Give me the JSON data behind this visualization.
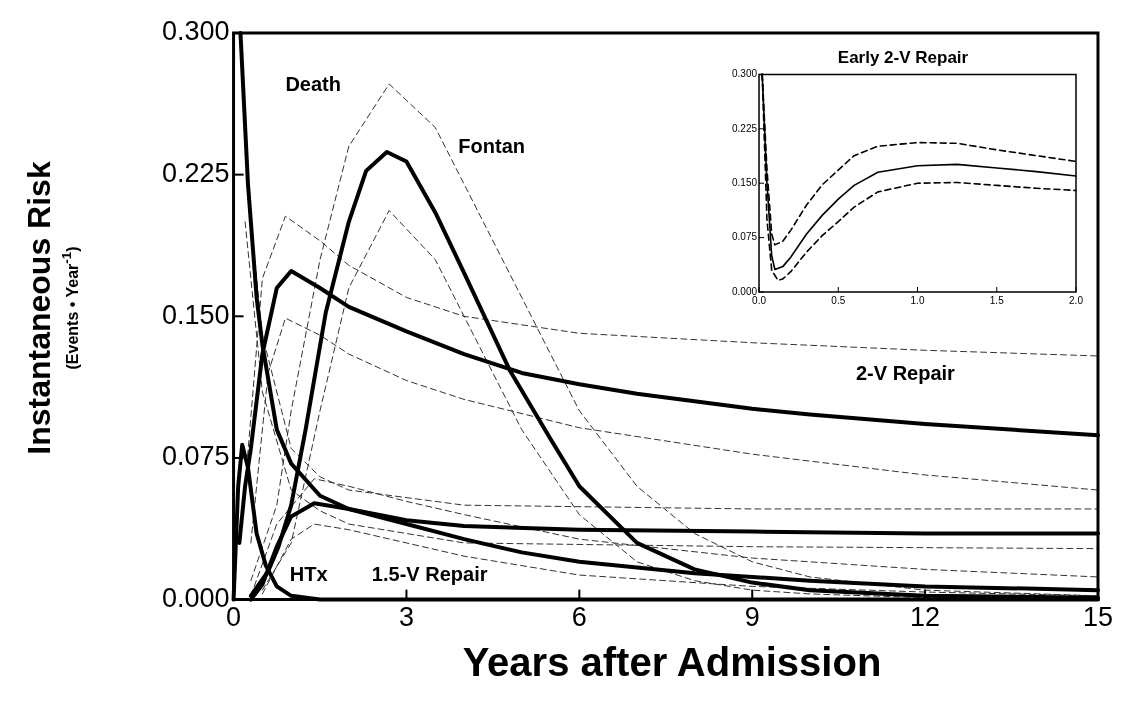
{
  "chart_data": [
    {
      "type": "line",
      "xlabel": "Years after Admission",
      "ylabel": "Instantaneous Risk\n(Events • Year$^{-1}$)",
      "xlim": [
        0,
        15
      ],
      "xticks": [
        0,
        3,
        6,
        9,
        12,
        15
      ],
      "ylim": [
        0,
        0.3
      ],
      "yticks": [
        {
          "value": 0,
          "label": "0.000"
        },
        {
          "value": 0.075,
          "label": "0.075"
        },
        {
          "value": 0.15,
          "label": "0.150"
        },
        {
          "value": 0.225,
          "label": "0.225"
        },
        {
          "value": 0.3,
          "label": "0.300"
        }
      ],
      "grid": false,
      "legend": false,
      "marker": "none",
      "series": [
        {
          "name": "Death",
          "type": "line",
          "color": "#000000",
          "line_style": "solid",
          "x": [
            0.12,
            0.25,
            0.4,
            0.5,
            0.75,
            1,
            1.5,
            2,
            3,
            4,
            6,
            9,
            12,
            15
          ],
          "values": [
            0.3,
            0.22,
            0.16,
            0.135,
            0.09,
            0.072,
            0.055,
            0.048,
            0.042,
            0.039,
            0.037,
            0.036,
            0.035,
            0.035
          ]
        },
        {
          "name": "Fontan",
          "type": "line",
          "color": "#000000",
          "line_style": "solid",
          "x": [
            0.3,
            0.6,
            0.78,
            1,
            1.25,
            1.6,
            2,
            2.3,
            2.66,
            3,
            3.5,
            4,
            4.8,
            5.5,
            6,
            7,
            8,
            9,
            10,
            12,
            15
          ],
          "values": [
            0.002,
            0.015,
            0.028,
            0.05,
            0.09,
            0.152,
            0.2,
            0.227,
            0.237,
            0.232,
            0.205,
            0.173,
            0.121,
            0.085,
            0.06,
            0.03,
            0.016,
            0.009,
            0.005,
            0.002,
            0.001
          ]
        },
        {
          "name": "2-V Repair",
          "type": "line",
          "color": "#000000",
          "line_style": "solid",
          "x": [
            0.1,
            0.2,
            0.3,
            0.5,
            0.75,
            1,
            1.5,
            2,
            3,
            4,
            5,
            6,
            7,
            8,
            9,
            10,
            12,
            15
          ],
          "values": [
            0.03,
            0.06,
            0.08,
            0.13,
            0.165,
            0.174,
            0.165,
            0.155,
            0.142,
            0.13,
            0.12,
            0.114,
            0.109,
            0.105,
            0.101,
            0.098,
            0.093,
            0.087
          ]
        },
        {
          "name": "HTx",
          "type": "line",
          "color": "#000000",
          "line_style": "solid",
          "x": [
            0,
            0.08,
            0.15,
            0.25,
            0.4,
            0.56,
            0.75,
            1,
            1.5,
            15
          ],
          "values": [
            0,
            0.06,
            0.082,
            0.07,
            0.035,
            0.018,
            0.007,
            0.002,
            0,
            0
          ]
        },
        {
          "name": "1.5-V Repair",
          "type": "line",
          "color": "#000000",
          "line_style": "solid",
          "x": [
            0.3,
            0.5,
            0.75,
            1,
            1.4,
            2,
            3,
            4,
            5,
            6,
            8,
            10,
            12,
            15
          ],
          "values": [
            0,
            0.008,
            0.028,
            0.044,
            0.051,
            0.048,
            0.04,
            0.032,
            0.025,
            0.02,
            0.014,
            0.01,
            0.007,
            0.005
          ]
        },
        {
          "type": "line",
          "color": "#333333",
          "line_style": "dashed",
          "x": [
            0.3,
            0.5,
            1,
            1.5,
            2,
            4,
            9,
            15
          ],
          "values": [
            0.2,
            0.14,
            0.08,
            0.065,
            0.058,
            0.05,
            0.048,
            0.048
          ]
        },
        {
          "type": "line",
          "color": "#333333",
          "line_style": "dashed",
          "x": [
            0.2,
            0.5,
            1,
            1.5,
            2,
            4,
            9,
            15
          ],
          "values": [
            0.2,
            0.11,
            0.058,
            0.047,
            0.04,
            0.03,
            0.028,
            0.027
          ]
        },
        {
          "type": "line",
          "color": "#333333",
          "line_style": "dashed",
          "x": [
            0.3,
            0.75,
            1,
            1.5,
            2,
            2.7,
            3.5,
            4,
            5,
            6,
            7,
            8,
            9,
            10,
            12,
            15
          ],
          "values": [
            0.01,
            0.05,
            0.1,
            0.18,
            0.24,
            0.273,
            0.25,
            0.22,
            0.16,
            0.1,
            0.06,
            0.035,
            0.02,
            0.012,
            0.005,
            0.002
          ]
        },
        {
          "type": "line",
          "color": "#333333",
          "line_style": "dashed",
          "x": [
            0.5,
            1,
            1.5,
            2,
            2.7,
            3.5,
            4,
            5,
            6,
            7,
            8,
            9,
            10,
            12,
            15
          ],
          "values": [
            0.005,
            0.03,
            0.1,
            0.165,
            0.206,
            0.18,
            0.15,
            0.09,
            0.045,
            0.02,
            0.01,
            0.005,
            0.003,
            0.001,
            0
          ]
        },
        {
          "type": "line",
          "color": "#333333",
          "line_style": "dashed",
          "x": [
            0.2,
            0.5,
            0.9,
            1.5,
            2,
            3,
            4,
            6,
            9,
            12,
            15
          ],
          "values": [
            0.06,
            0.17,
            0.203,
            0.19,
            0.177,
            0.16,
            0.15,
            0.141,
            0.136,
            0.132,
            0.129
          ]
        },
        {
          "type": "line",
          "color": "#333333",
          "line_style": "dashed",
          "x": [
            0.3,
            0.6,
            0.9,
            1.5,
            2,
            3,
            4,
            6,
            9,
            12,
            15
          ],
          "values": [
            0.03,
            0.12,
            0.149,
            0.14,
            0.13,
            0.116,
            0.106,
            0.091,
            0.077,
            0.066,
            0.058
          ]
        },
        {
          "type": "line",
          "color": "#333333",
          "line_style": "dashed",
          "x": [
            0.3,
            0.75,
            1.4,
            2,
            3,
            4,
            6,
            9,
            12,
            15
          ],
          "values": [
            0.002,
            0.04,
            0.064,
            0.06,
            0.052,
            0.045,
            0.032,
            0.022,
            0.016,
            0.012
          ]
        },
        {
          "type": "line",
          "color": "#333333",
          "line_style": "dashed",
          "x": [
            0.5,
            1,
            1.4,
            2,
            3,
            4,
            6,
            9,
            12,
            15
          ],
          "values": [
            0.003,
            0.032,
            0.04,
            0.037,
            0.03,
            0.023,
            0.013,
            0.007,
            0.004,
            0.002
          ]
        }
      ]
    },
    {
      "type": "line",
      "title": "Early 2-V Repair",
      "xlim": [
        0,
        2
      ],
      "xticks": [
        {
          "value": 0,
          "label": "0.0"
        },
        {
          "value": 0.5,
          "label": "0.5"
        },
        {
          "value": 1,
          "label": "1.0"
        },
        {
          "value": 1.5,
          "label": "1.5"
        },
        {
          "value": 2,
          "label": "2.0"
        }
      ],
      "ylim": [
        0,
        0.3
      ],
      "yticks": [
        {
          "value": 0,
          "label": "0.000"
        },
        {
          "value": 0.075,
          "label": "0.075"
        },
        {
          "value": 0.15,
          "label": "0.150"
        },
        {
          "value": 0.225,
          "label": "0.225"
        },
        {
          "value": 0.3,
          "label": "0.300"
        }
      ],
      "grid": false,
      "legend": false,
      "marker": "none",
      "series": [
        {
          "type": "line",
          "color": "#000000",
          "line_style": "solid",
          "x": [
            0.02,
            0.05,
            0.08,
            0.1,
            0.15,
            0.2,
            0.3,
            0.4,
            0.5,
            0.6,
            0.75,
            1,
            1.25,
            1.5,
            1.75,
            2
          ],
          "values": [
            0.3,
            0.15,
            0.05,
            0.031,
            0.035,
            0.048,
            0.08,
            0.106,
            0.128,
            0.147,
            0.165,
            0.174,
            0.176,
            0.171,
            0.166,
            0.16
          ]
        },
        {
          "type": "line",
          "color": "#000000",
          "line_style": "dashed",
          "x": [
            0.02,
            0.05,
            0.08,
            0.1,
            0.15,
            0.2,
            0.3,
            0.4,
            0.5,
            0.6,
            0.75,
            1,
            1.25,
            1.5,
            1.75,
            2
          ],
          "values": [
            0.3,
            0.17,
            0.08,
            0.065,
            0.07,
            0.085,
            0.12,
            0.148,
            0.168,
            0.188,
            0.201,
            0.206,
            0.205,
            0.196,
            0.188,
            0.18
          ]
        },
        {
          "type": "line",
          "color": "#000000",
          "line_style": "dashed",
          "x": [
            0.02,
            0.05,
            0.08,
            0.12,
            0.15,
            0.2,
            0.3,
            0.4,
            0.5,
            0.6,
            0.75,
            1,
            1.25,
            1.5,
            1.75,
            2
          ],
          "values": [
            0.3,
            0.1,
            0.03,
            0.016,
            0.018,
            0.028,
            0.055,
            0.078,
            0.097,
            0.117,
            0.138,
            0.15,
            0.151,
            0.147,
            0.143,
            0.14
          ]
        }
      ]
    }
  ]
}
